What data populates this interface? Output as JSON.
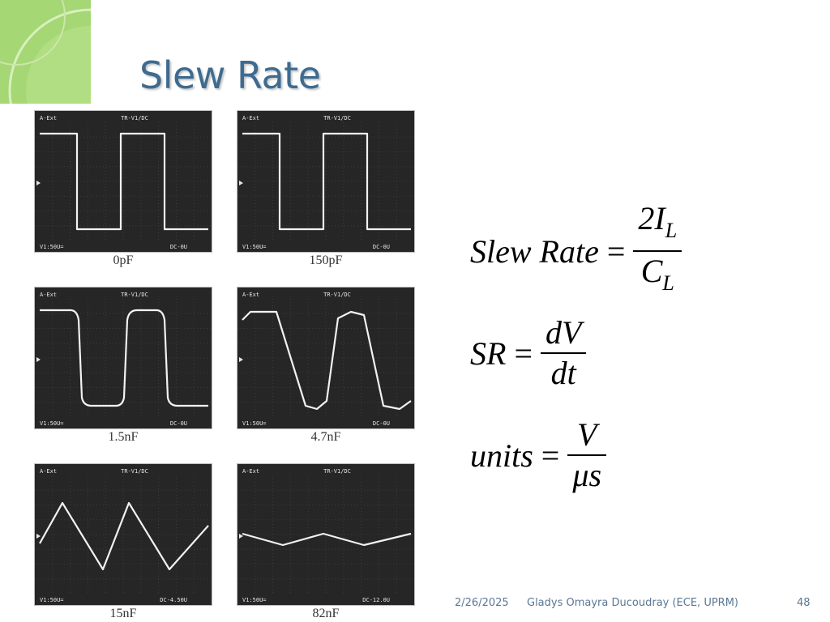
{
  "slide": {
    "title": "Slew Rate",
    "accent_color": "#3e6b8f",
    "decoration_color": "#a5d774"
  },
  "scope_common": {
    "top_left_label": "A-Ext",
    "top_center_label": "TR-V1/DC",
    "bottom_left_label": "V1:50U="
  },
  "scopes": [
    {
      "caption": "0pF",
      "bottom_right_label": "DC-0U",
      "waveform": "square"
    },
    {
      "caption": "150pF",
      "bottom_right_label": "DC-0U",
      "waveform": "square"
    },
    {
      "caption": "1.5nF",
      "bottom_right_label": "DC-0U",
      "waveform": "rounded-square"
    },
    {
      "caption": "4.7nF",
      "bottom_right_label": "DC-0U",
      "waveform": "trapezoid"
    },
    {
      "caption": "15nF",
      "bottom_right_label": "DC-4.50U",
      "waveform": "triangle"
    },
    {
      "caption": "82nF",
      "bottom_right_label": "DC-12.0U",
      "waveform": "small-triangle"
    }
  ],
  "formulas": {
    "f1": {
      "lhs": "Slew Rate",
      "eq": "=",
      "num_main": "2I",
      "num_sub": "L",
      "den_main": "C",
      "den_sub": "L"
    },
    "f2": {
      "lhs": "SR",
      "eq": "=",
      "num": "dV",
      "den": "dt"
    },
    "f3": {
      "lhs": "units",
      "eq": "=",
      "num": "V",
      "den": "μs"
    }
  },
  "footer": {
    "date": "2/26/2025",
    "author": "Gladys Omayra Ducoudray (ECE, UPRM)",
    "page_number": "48"
  }
}
